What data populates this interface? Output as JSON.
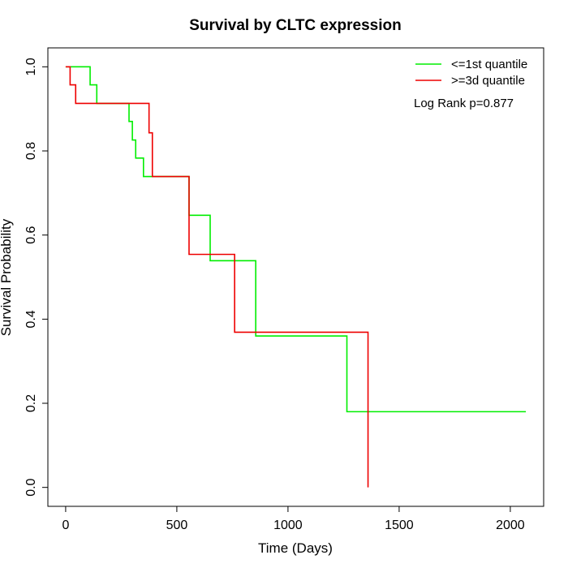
{
  "chart_data": {
    "type": "line",
    "title": "Survival by CLTC expression",
    "xlabel": "Time (Days)",
    "ylabel": "Survival Probability",
    "xlim": [
      -80,
      2150
    ],
    "ylim": [
      -0.045,
      1.045
    ],
    "xticks": [
      0,
      500,
      1000,
      1500,
      2000
    ],
    "xtick_labels": [
      "0",
      "500",
      "1000",
      "1500",
      "2000"
    ],
    "yticks": [
      0.0,
      0.2,
      0.4,
      0.6,
      0.8,
      1.0
    ],
    "ytick_labels": [
      "0.0",
      "0.2",
      "0.4",
      "0.6",
      "0.8",
      "1.0"
    ],
    "grid": false,
    "legend_position": "top-right",
    "annotation": "Log Rank p=0.877",
    "series": [
      {
        "name": "<=1st quantile",
        "color": "#00ee00",
        "step": true,
        "points": [
          [
            0,
            1.0
          ],
          [
            110,
            1.0
          ],
          [
            110,
            0.957
          ],
          [
            140,
            0.957
          ],
          [
            140,
            0.913
          ],
          [
            285,
            0.913
          ],
          [
            285,
            0.87
          ],
          [
            300,
            0.87
          ],
          [
            300,
            0.826
          ],
          [
            315,
            0.826
          ],
          [
            315,
            0.783
          ],
          [
            350,
            0.783
          ],
          [
            350,
            0.739
          ],
          [
            555,
            0.739
          ],
          [
            555,
            0.647
          ],
          [
            650,
            0.647
          ],
          [
            650,
            0.539
          ],
          [
            855,
            0.539
          ],
          [
            855,
            0.36
          ],
          [
            1265,
            0.36
          ],
          [
            1265,
            0.18
          ],
          [
            2070,
            0.18
          ]
        ]
      },
      {
        "name": ">=3d quantile",
        "color": "#ee0000",
        "step": true,
        "points": [
          [
            0,
            1.0
          ],
          [
            20,
            1.0
          ],
          [
            20,
            0.957
          ],
          [
            45,
            0.957
          ],
          [
            45,
            0.913
          ],
          [
            375,
            0.913
          ],
          [
            375,
            0.843
          ],
          [
            390,
            0.843
          ],
          [
            390,
            0.739
          ],
          [
            555,
            0.739
          ],
          [
            555,
            0.554
          ],
          [
            760,
            0.554
          ],
          [
            760,
            0.369
          ],
          [
            1360,
            0.369
          ],
          [
            1360,
            0.0
          ]
        ]
      }
    ]
  }
}
